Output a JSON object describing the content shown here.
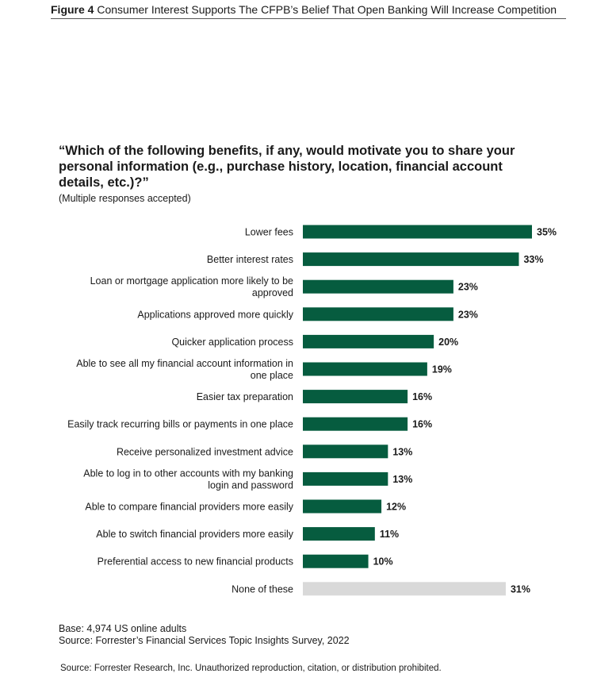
{
  "figure": {
    "label": "Figure 4",
    "title": "Consumer Interest Supports The CFPB’s Belief That Open Banking Will Increase Competition"
  },
  "question": "“Which of the following benefits, if any, would motivate you to share your personal information (e.g., purchase history, location, financial account details, etc.)?”",
  "note": "(Multiple responses accepted)",
  "base": "Base: 4,974 US online adults",
  "source": "Source: Forrester’s Financial Services Topic Insights Survey, 2022",
  "footer": "Source: Forrester Research, Inc. Unauthorized reproduction, citation, or distribution prohibited.",
  "colors": {
    "bar": "#065c3f",
    "bar_muted": "#d9d9d9"
  },
  "chart_data": {
    "type": "bar",
    "orientation": "horizontal",
    "unit": "%",
    "xlim": [
      0,
      35
    ],
    "categories": [
      "Lower fees",
      "Better interest rates",
      "Loan or mortgage application more likely to be approved",
      "Applications approved more quickly",
      "Quicker application process",
      "Able to see all my financial account information in one place",
      "Easier tax preparation",
      "Easily track recurring bills or payments in one place",
      "Receive personalized investment advice",
      "Able to log in to other accounts with my banking login and password",
      "Able to compare financial providers more easily",
      "Able to switch financial providers more easily",
      "Preferential access to new financial products",
      "None of these"
    ],
    "category_lines": [
      [
        "Lower fees"
      ],
      [
        "Better interest rates"
      ],
      [
        "Loan or mortgage application more likely to be",
        "approved"
      ],
      [
        "Applications approved more quickly"
      ],
      [
        "Quicker application process"
      ],
      [
        "Able to see all my financial account information in",
        "one place"
      ],
      [
        "Easier tax preparation"
      ],
      [
        "Easily track recurring bills or payments in one place"
      ],
      [
        "Receive personalized investment advice"
      ],
      [
        "Able to log in to other accounts with my banking",
        "login and password"
      ],
      [
        "Able to compare financial providers more easily"
      ],
      [
        "Able to switch financial providers more easily"
      ],
      [
        "Preferential access to new financial products"
      ],
      [
        "None of these"
      ]
    ],
    "values": [
      35,
      33,
      23,
      23,
      20,
      19,
      16,
      16,
      13,
      13,
      12,
      11,
      10,
      31
    ],
    "value_labels": [
      "35%",
      "33%",
      "23%",
      "23%",
      "20%",
      "19%",
      "16%",
      "16%",
      "13%",
      "13%",
      "12%",
      "11%",
      "10%",
      "31%"
    ],
    "muted": [
      false,
      false,
      false,
      false,
      false,
      false,
      false,
      false,
      false,
      false,
      false,
      false,
      false,
      true
    ],
    "legend": "none",
    "grid": false
  }
}
